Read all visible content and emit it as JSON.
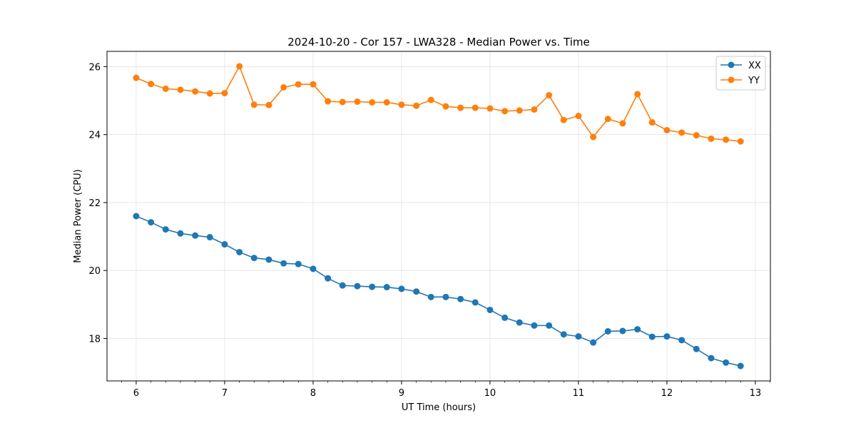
{
  "chart_data": {
    "type": "line",
    "title": "2024-10-20 - Cor 157 - LWA328 - Median Power vs. Time",
    "xlabel": "UT Time (hours)",
    "ylabel": "Median Power (CPU)",
    "xlim": [
      5.67,
      13.17
    ],
    "ylim": [
      16.75,
      26.45
    ],
    "xticks": [
      6,
      7,
      8,
      9,
      10,
      11,
      12,
      13
    ],
    "yticks": [
      18,
      20,
      22,
      24,
      26
    ],
    "grid": true,
    "legend_position": "top-right",
    "x": [
      6.0,
      6.167,
      6.333,
      6.5,
      6.667,
      6.833,
      7.0,
      7.167,
      7.333,
      7.5,
      7.667,
      7.833,
      8.0,
      8.167,
      8.333,
      8.5,
      8.667,
      8.833,
      9.0,
      9.167,
      9.333,
      9.5,
      9.667,
      9.833,
      10.0,
      10.167,
      10.333,
      10.5,
      10.667,
      10.833,
      11.0,
      11.167,
      11.333,
      11.5,
      11.667,
      11.833,
      12.0,
      12.167,
      12.333,
      12.5,
      12.667,
      12.833
    ],
    "series": [
      {
        "name": "XX",
        "color": "#1f77b4",
        "values": [
          21.6,
          21.42,
          21.21,
          21.09,
          21.03,
          20.98,
          20.77,
          20.54,
          20.37,
          20.32,
          20.21,
          20.19,
          20.05,
          19.77,
          19.56,
          19.54,
          19.52,
          19.51,
          19.46,
          19.38,
          19.22,
          19.22,
          19.16,
          19.06,
          18.84,
          18.61,
          18.47,
          18.38,
          18.38,
          18.12,
          18.06,
          17.88,
          18.21,
          18.22,
          18.27,
          18.05,
          18.06,
          17.95,
          17.69,
          17.42,
          17.29,
          17.19
        ]
      },
      {
        "name": "YY",
        "color": "#ff7f0e",
        "values": [
          25.67,
          25.49,
          25.35,
          25.32,
          25.27,
          25.21,
          25.22,
          26.01,
          24.88,
          24.87,
          25.39,
          25.48,
          25.48,
          24.98,
          24.96,
          24.97,
          24.95,
          24.95,
          24.88,
          24.85,
          25.02,
          24.83,
          24.79,
          24.79,
          24.77,
          24.69,
          24.71,
          24.74,
          25.16,
          24.43,
          24.55,
          23.93,
          24.46,
          24.33,
          25.19,
          24.36,
          24.13,
          24.06,
          23.98,
          23.88,
          23.85,
          23.8
        ]
      }
    ]
  }
}
